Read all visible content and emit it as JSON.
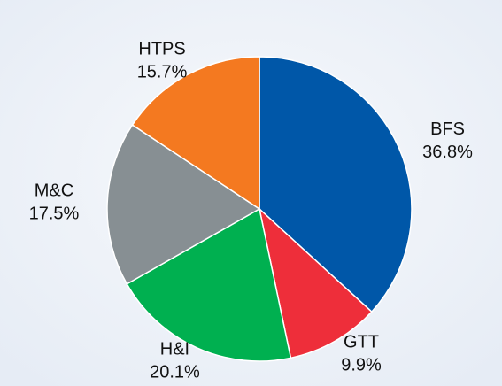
{
  "chart_data": {
    "type": "pie",
    "categories": [
      "BFS",
      "GTT",
      "H&I",
      "M&C",
      "HTPS"
    ],
    "values": [
      36.8,
      9.9,
      20.1,
      17.5,
      15.7
    ],
    "value_labels": [
      "36.8%",
      "9.9%",
      "20.1%",
      "17.5%",
      "15.7%"
    ],
    "colors": [
      "#0057a8",
      "#ee2e3a",
      "#00b050",
      "#878f93",
      "#f47920"
    ]
  }
}
